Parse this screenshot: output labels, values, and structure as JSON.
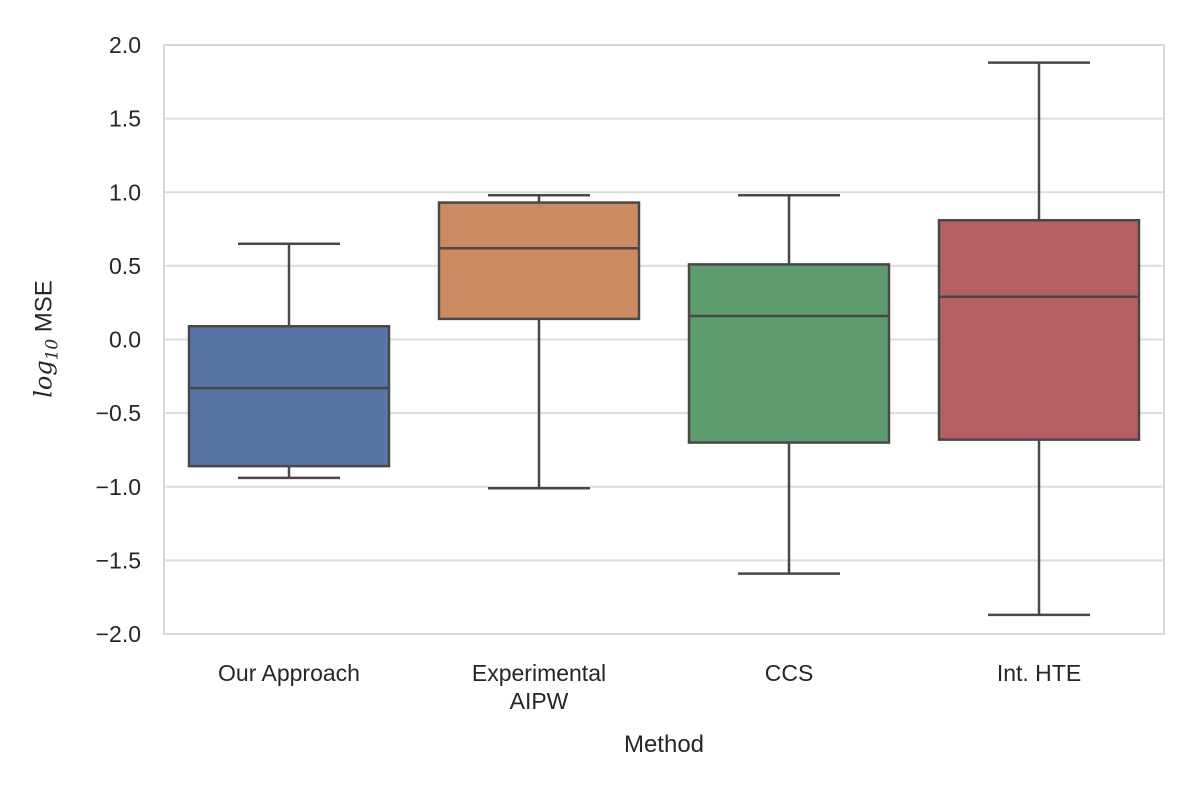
{
  "figure": {
    "background": "#ffffff",
    "text_color": "#262626",
    "grid_color": "#dcdcdc",
    "spine_color": "#d9d9d9",
    "box_line_color": "#484848"
  },
  "chart_data": {
    "type": "box",
    "title": "",
    "xlabel": "Method",
    "ylabel": "log10 MSE",
    "ylabel_parts": {
      "italic": "log",
      "subscript": "10",
      "text": " MSE"
    },
    "ylim": [
      -2.0,
      2.0
    ],
    "ytick_step": 0.5,
    "ytick_labels": [
      "2.0",
      "1.5",
      "1.0",
      "0.5",
      "0.0",
      "−0.5",
      "−1.0",
      "−1.5",
      "−2.0"
    ],
    "grid": true,
    "legend": false,
    "categories": [
      "Our Approach",
      "Experimental\nAIPW",
      "CCS",
      "Int. HTE"
    ],
    "boxes": [
      {
        "category": "Our Approach",
        "color": "#5875A8",
        "whisker_low": -0.94,
        "q1": -0.86,
        "median": -0.33,
        "q3": 0.09,
        "whisker_high": 0.65
      },
      {
        "category": "Experimental AIPW",
        "color": "#CC8A63",
        "whisker_low": -1.01,
        "q1": 0.14,
        "median": 0.62,
        "q3": 0.93,
        "whisker_high": 0.98
      },
      {
        "category": "CCS",
        "color": "#5C9C6D",
        "whisker_low": -1.59,
        "q1": -0.7,
        "median": 0.16,
        "q3": 0.51,
        "whisker_high": 0.98
      },
      {
        "category": "Int. HTE",
        "color": "#B55F63",
        "whisker_low": -1.87,
        "q1": -0.68,
        "median": 0.29,
        "q3": 0.81,
        "whisker_high": 1.88
      }
    ]
  }
}
